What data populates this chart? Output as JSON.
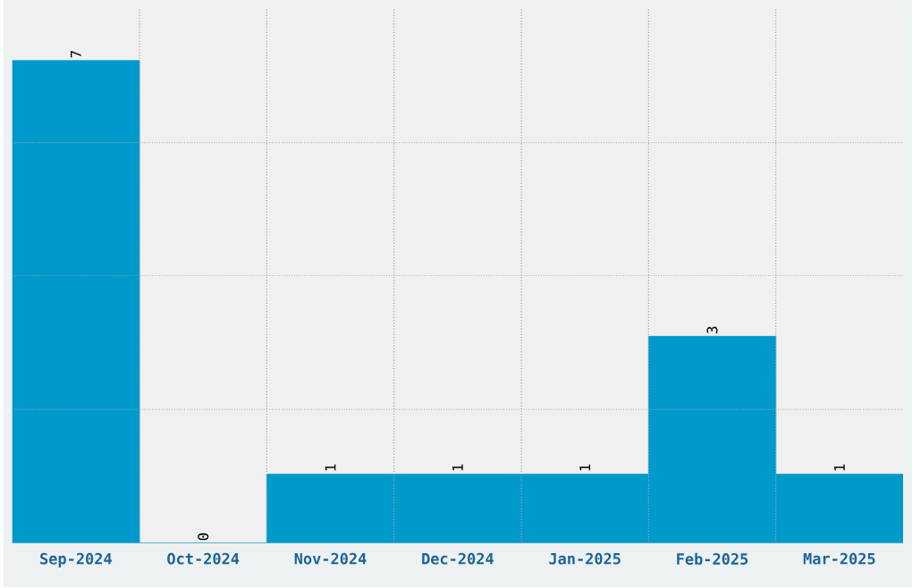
{
  "chart_data": {
    "type": "bar",
    "categories": [
      "Sep-2024",
      "Oct-2024",
      "Nov-2024",
      "Dec-2024",
      "Jan-2025",
      "Feb-2025",
      "Mar-2025"
    ],
    "values": [
      7,
      0,
      1,
      1,
      1,
      3,
      1
    ],
    "color": "#0099cc",
    "ylim": [
      0,
      7.75
    ],
    "yticks": [
      {
        "value": 1.94,
        "label": null
      },
      {
        "value": 3.88,
        "label": null
      },
      {
        "value": 5.81,
        "label": null
      }
    ],
    "tick_labels": "x",
    "grid": true,
    "data_labels": true
  }
}
